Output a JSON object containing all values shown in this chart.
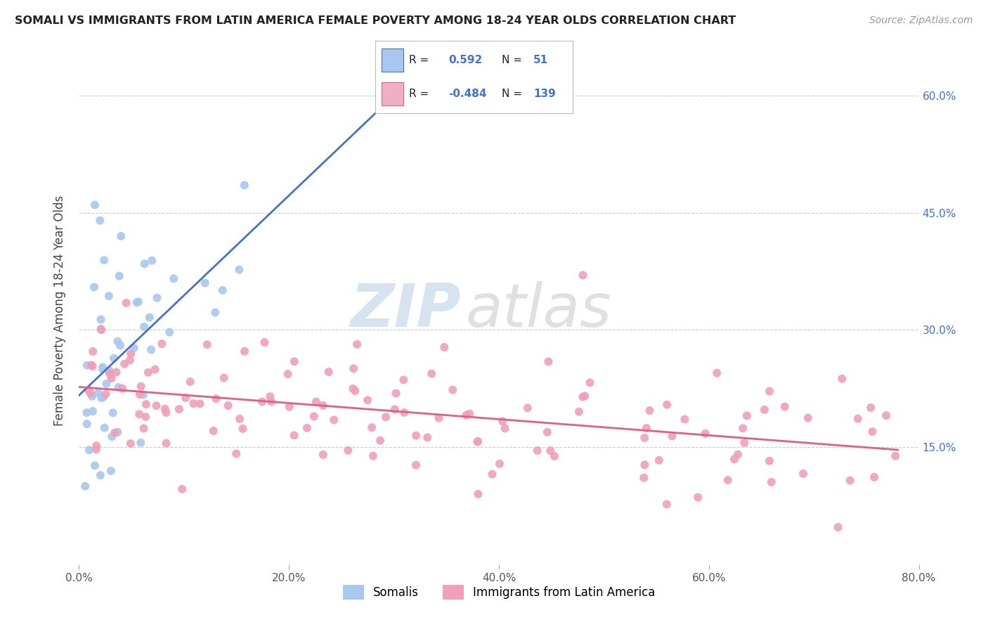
{
  "title_display": "SOMALI VS IMMIGRANTS FROM LATIN AMERICA FEMALE POVERTY AMONG 18-24 YEAR OLDS CORRELATION CHART",
  "source_text": "Source: ZipAtlas.com",
  "ylabel": "Female Poverty Among 18-24 Year Olds",
  "xmin": 0.0,
  "xmax": 0.8,
  "ymin": 0.0,
  "ymax": 0.65,
  "yticks": [
    0.0,
    0.15,
    0.3,
    0.45,
    0.6
  ],
  "ytick_labels": [
    "",
    "15.0%",
    "30.0%",
    "45.0%",
    "60.0%"
  ],
  "xticks": [
    0.0,
    0.2,
    0.4,
    0.6,
    0.8
  ],
  "xtick_labels": [
    "0.0%",
    "20.0%",
    "40.0%",
    "60.0%",
    "80.0%"
  ],
  "somali_R": 0.592,
  "somali_N": 51,
  "latin_R": -0.484,
  "latin_N": 139,
  "somali_color": "#a8c8f0",
  "latin_color": "#f0a0b8",
  "somali_line_color": "#4472c4",
  "latin_line_color": "#e06080",
  "background_color": "#ffffff",
  "watermark_zip": "ZIP",
  "watermark_atlas": "atlas",
  "legend_box_color_somali": "#a8c8f0",
  "legend_box_color_latin": "#f0b0c4",
  "somali_label": "Somalis",
  "latin_label": "Immigrants from Latin America",
  "legend_R_label": "R =",
  "legend_N_label": "N =",
  "somali_R_str": "0.592",
  "somali_N_str": "51",
  "latin_R_str": "-0.484",
  "latin_N_str": "139",
  "value_color": "#4472c4",
  "label_color": "#222222",
  "grid_color": "#cccccc",
  "tick_color": "#555555",
  "right_tick_color": "#4472c4"
}
